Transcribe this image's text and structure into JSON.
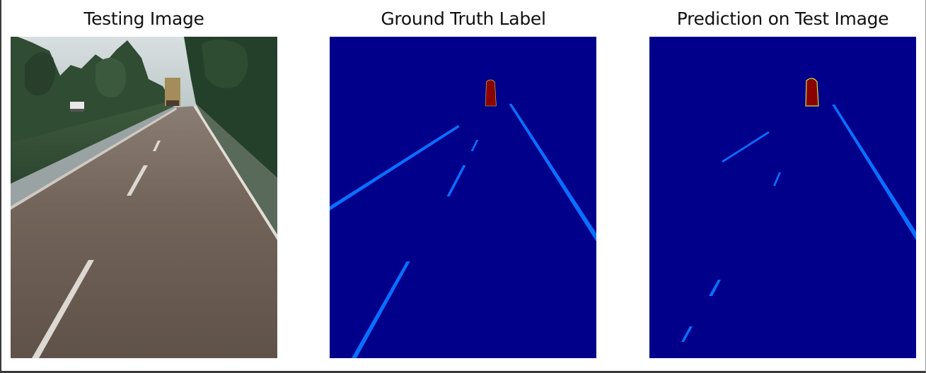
{
  "panels": [
    {
      "title": "Testing Image",
      "kind": "photo",
      "colors": {
        "sky": "#c9d3d6",
        "trees": "#2f4a30",
        "road": "#6e6158",
        "lane_marking": "#d9d5cf"
      }
    },
    {
      "title": "Ground Truth Label",
      "kind": "segmentation-mask",
      "colors": {
        "background": "#00008b",
        "lane": "#0a6fff",
        "vehicle": "#8b0000"
      }
    },
    {
      "title": "Prediction on Test Image",
      "kind": "segmentation-mask",
      "colors": {
        "background": "#00008b",
        "lane": "#0a6fff",
        "vehicle": "#8b0000",
        "vehicle_edge": "#c8e832"
      }
    }
  ]
}
